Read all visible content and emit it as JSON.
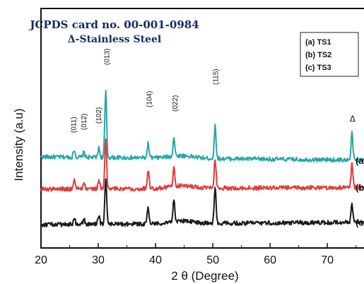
{
  "chart_data": {
    "type": "line",
    "title": "JCPDS card no. 00-001-0984",
    "subtitle": "Δ-Stainless Steel",
    "xlabel": "2 θ (Degree)",
    "ylabel": "Intensity (a.u)",
    "xlim": [
      20,
      78
    ],
    "xticks": [
      20,
      30,
      40,
      50,
      60,
      70
    ],
    "yticks": [],
    "grid": false,
    "legend": {
      "placement": "top-right",
      "entries": [
        "(a) TS1",
        "(b) TS2",
        "(c) TS3"
      ]
    },
    "peak_annotations": [
      {
        "x": 25.6,
        "label": "(011)"
      },
      {
        "x": 27.4,
        "label": "(012)"
      },
      {
        "x": 30.0,
        "label": "(102)"
      },
      {
        "x": 31.4,
        "label": "(013)"
      },
      {
        "x": 38.8,
        "label": "(104)"
      },
      {
        "x": 43.3,
        "label": "(022)"
      },
      {
        "x": 50.4,
        "label": "(115)"
      },
      {
        "x": 74.4,
        "label": "Δ"
      }
    ],
    "series": [
      {
        "name": "(a)",
        "color": "#25a7a7",
        "baseline": 0.8,
        "slope": -0.04,
        "peaks": [
          [
            25.8,
            0.09
          ],
          [
            27.5,
            0.06
          ],
          [
            30.1,
            0.11
          ],
          [
            31.3,
            0.78
          ],
          [
            38.7,
            0.17
          ],
          [
            43.2,
            0.22
          ],
          [
            50.4,
            0.38
          ],
          [
            74.3,
            0.32
          ]
        ]
      },
      {
        "name": "(b)",
        "color": "#e33b3b",
        "baseline": 0.42,
        "slope": 0.02,
        "peaks": [
          [
            25.8,
            0.12
          ],
          [
            27.5,
            0.08
          ],
          [
            30.1,
            0.1
          ],
          [
            31.3,
            0.58
          ],
          [
            38.7,
            0.22
          ],
          [
            43.2,
            0.22
          ],
          [
            50.4,
            0.35
          ],
          [
            74.3,
            0.28
          ]
        ]
      },
      {
        "name": "(c)",
        "color": "#1a1a1a",
        "baseline": 0.0,
        "slope": 0.03,
        "peaks": [
          [
            25.8,
            0.09
          ],
          [
            27.5,
            0.06
          ],
          [
            30.1,
            0.1
          ],
          [
            31.3,
            0.55
          ],
          [
            38.7,
            0.18
          ],
          [
            43.2,
            0.27
          ],
          [
            50.4,
            0.42
          ],
          [
            74.3,
            0.22
          ]
        ]
      }
    ]
  }
}
